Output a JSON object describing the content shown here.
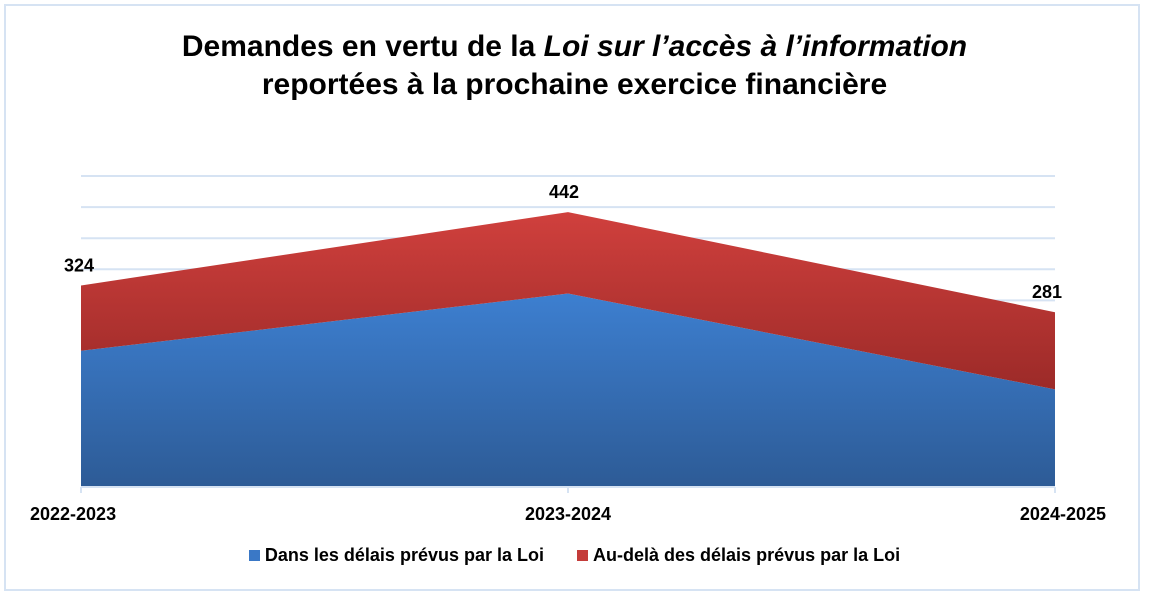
{
  "chart_data": {
    "type": "area",
    "stacked": true,
    "title_line1_prefix": "Demandes en vertu de la ",
    "title_line1_italic": "Loi sur l’accès à l’information",
    "title_line2": "reportées à la prochaine exercice financière",
    "categories": [
      "2022-2023",
      "2023-2024",
      "2024-2025"
    ],
    "series": [
      {
        "name": "Dans les délais prévus par la Loi",
        "values": [
          219,
          311,
          157
        ],
        "color": "#3a78c6"
      },
      {
        "name": "Au-delà des délais prévus par la Loi",
        "values": [
          105,
          131,
          124
        ],
        "color": "#c43c3a"
      }
    ],
    "totals_labels": [
      "324",
      "442",
      "281"
    ],
    "ylim": [
      0,
      500
    ],
    "ytick_step": 50,
    "grid": true,
    "y_axis_labels_shown": false,
    "legend_position": "bottom"
  }
}
